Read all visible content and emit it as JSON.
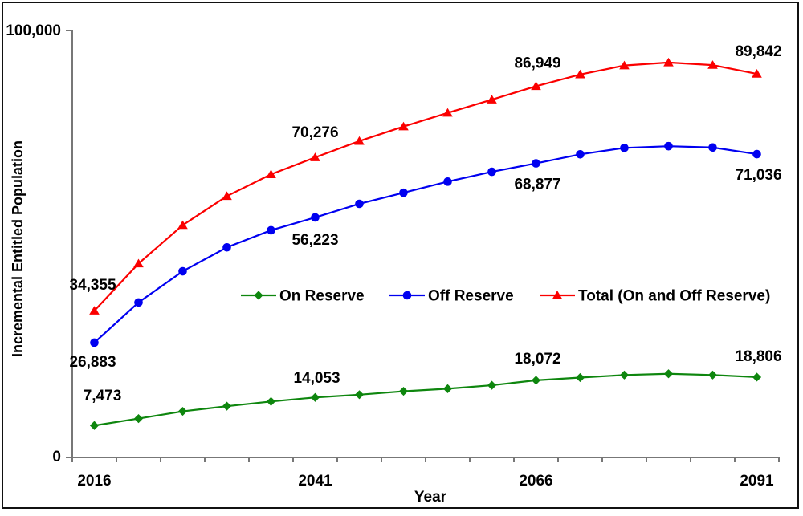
{
  "chart_data": {
    "type": "line",
    "title": "",
    "xlabel": "Year",
    "ylabel": "Incremental Entitled Population",
    "x": [
      2016,
      2021,
      2026,
      2031,
      2036,
      2041,
      2046,
      2051,
      2056,
      2061,
      2066,
      2071,
      2076,
      2081,
      2086,
      2091
    ],
    "x_tick_labels": [
      "2016",
      "2041",
      "2066",
      "2091"
    ],
    "x_tick_label_indices": [
      0,
      5,
      10,
      15
    ],
    "y_tick_labels": [
      "0",
      "100,000"
    ],
    "ylim": [
      0,
      100000
    ],
    "grid": false,
    "legend_position": "inside-center",
    "axis_color": "#777777",
    "text_color": "#000000",
    "background_color": "#ffffff",
    "series": [
      {
        "name": "On Reserve",
        "color": "#0e860e",
        "marker": "diamond",
        "values": [
          7473,
          9100,
          10800,
          12000,
          13100,
          14053,
          14700,
          15500,
          16100,
          16900,
          18072,
          18700,
          19300,
          19600,
          19300,
          18806
        ],
        "point_labels": {
          "0": "7,473",
          "5": "14,053",
          "10": "18,072",
          "15": "18,806"
        }
      },
      {
        "name": "Off Reserve",
        "color": "#0000f0",
        "marker": "circle",
        "values": [
          26883,
          36300,
          43600,
          49200,
          53200,
          56223,
          59400,
          62000,
          64600,
          66900,
          68877,
          71000,
          72500,
          72900,
          72600,
          71036
        ],
        "point_labels": {
          "0": "26,883",
          "5": "56,223",
          "10": "68,877",
          "15": "71,036"
        }
      },
      {
        "name": "Total (On and Off Reserve)",
        "color": "#fb0000",
        "marker": "triangle",
        "values": [
          34355,
          45400,
          54400,
          61200,
          66300,
          70276,
          74100,
          77500,
          80700,
          83800,
          86949,
          89700,
          91800,
          92500,
          91900,
          89842
        ],
        "point_labels": {
          "0": "34,355",
          "5": "70,276",
          "10": "86,949",
          "15": "89,842"
        }
      }
    ]
  }
}
